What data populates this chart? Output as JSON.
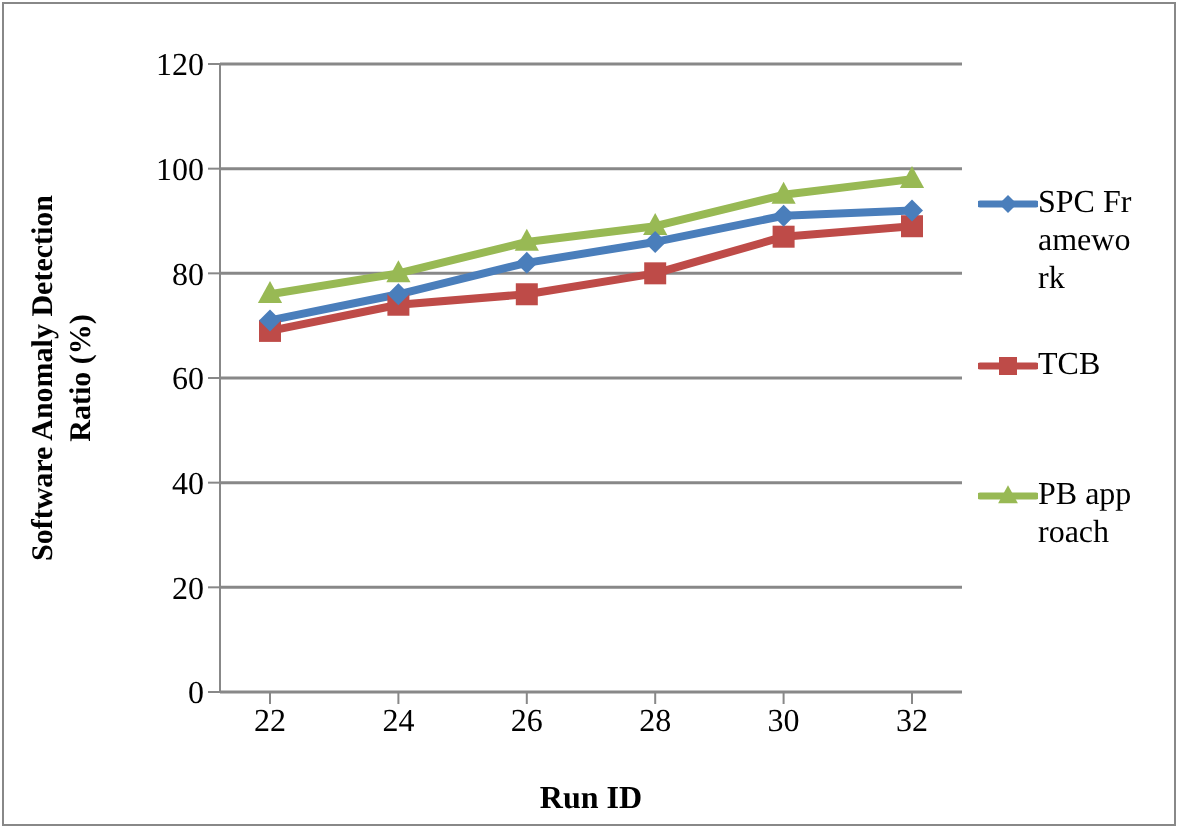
{
  "chart_data": {
    "type": "line",
    "xlabel": "Run ID",
    "ylabel": "Software Anomaly Detection Ratio (%)",
    "categories": [
      "22",
      "24",
      "26",
      "28",
      "30",
      "32"
    ],
    "series": [
      {
        "name": "SPC Framework",
        "color": "#4a7ebb",
        "marker": "diamond",
        "values": [
          71,
          76,
          82,
          86,
          91,
          92
        ]
      },
      {
        "name": "TCB",
        "color": "#be4b48",
        "marker": "square",
        "values": [
          69,
          74,
          76,
          80,
          87,
          89
        ]
      },
      {
        "name": "PB approach",
        "color": "#98b954",
        "marker": "triangle",
        "values": [
          76,
          80,
          86,
          89,
          95,
          98
        ]
      }
    ],
    "ylim": [
      0,
      120
    ],
    "yticks": [
      0,
      20,
      40,
      60,
      80,
      100,
      120
    ],
    "grid": "y",
    "legend": "right"
  }
}
